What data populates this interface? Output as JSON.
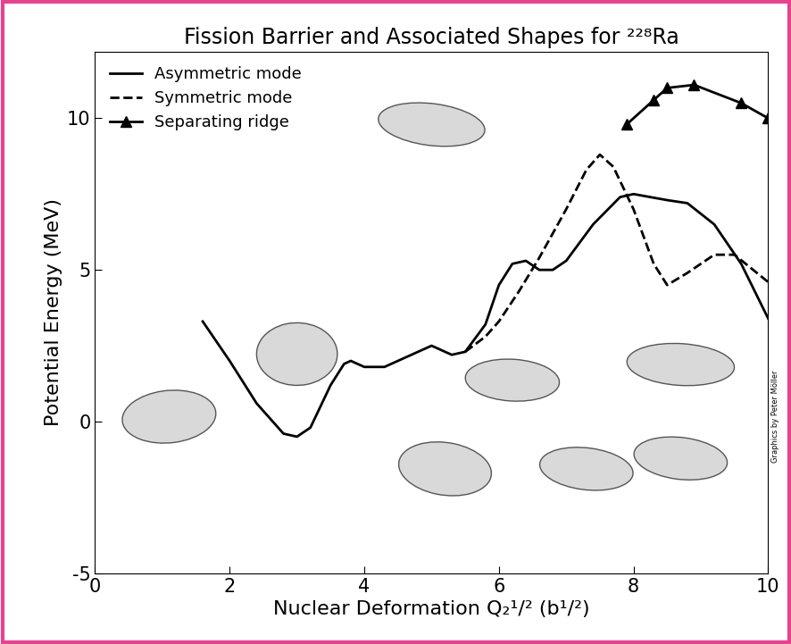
{
  "chart_data": {
    "type": "line",
    "title": "Fission Barrier and Associated Shapes for ²²⁸Ra",
    "x_label": "Nuclear Deformation Q₂¹/² (b¹/²)",
    "y_label": "Potential Energy (MeV)",
    "annotations": [
      "Graphics by Peter Möller"
    ],
    "xlim": [
      0,
      10
    ],
    "xticks": [
      0,
      2,
      4,
      6,
      8,
      10
    ],
    "ylim": [
      -5,
      12.2
    ],
    "yticks": [
      -5,
      0,
      5,
      10
    ],
    "legend": "upper left",
    "series": [
      {
        "name": "Asymmetric mode",
        "color": "#000000",
        "line_style": "solid",
        "marker": "none",
        "x": [
          1.6,
          2.0,
          2.4,
          2.8,
          3.0,
          3.2,
          3.5,
          3.7,
          3.8,
          4.0,
          4.3,
          4.7,
          5.0,
          5.3,
          5.5,
          5.8,
          6.0,
          6.2,
          6.4,
          6.6,
          6.8,
          7.0,
          7.4,
          7.8,
          8.0,
          8.5,
          8.8,
          9.2,
          9.6,
          10.0
        ],
        "values": [
          3.3,
          2.0,
          0.6,
          -0.4,
          -0.5,
          -0.2,
          1.2,
          1.9,
          2.0,
          1.8,
          1.8,
          2.2,
          2.5,
          2.2,
          2.3,
          3.2,
          4.5,
          5.2,
          5.3,
          5.0,
          5.0,
          5.3,
          6.5,
          7.4,
          7.5,
          7.3,
          7.2,
          6.5,
          5.2,
          3.4
        ]
      },
      {
        "name": "Symmetric mode",
        "color": "#000000",
        "line_style": "dashed",
        "marker": "none",
        "x": [
          5.5,
          5.8,
          6.0,
          6.3,
          6.6,
          7.0,
          7.3,
          7.5,
          7.7,
          8.0,
          8.3,
          8.5,
          8.8,
          9.2,
          9.5,
          10.0
        ],
        "values": [
          2.3,
          2.8,
          3.3,
          4.3,
          5.4,
          7.0,
          8.3,
          8.8,
          8.4,
          7.0,
          5.2,
          4.5,
          4.9,
          5.5,
          5.5,
          4.6
        ]
      },
      {
        "name": "Separating ridge",
        "color": "#000000",
        "line_style": "solid",
        "marker": "^",
        "x": [
          7.9,
          8.3,
          8.5,
          8.9,
          9.6,
          10.0
        ],
        "values": [
          9.8,
          10.6,
          11.0,
          11.1,
          10.5,
          10.0
        ]
      }
    ]
  }
}
